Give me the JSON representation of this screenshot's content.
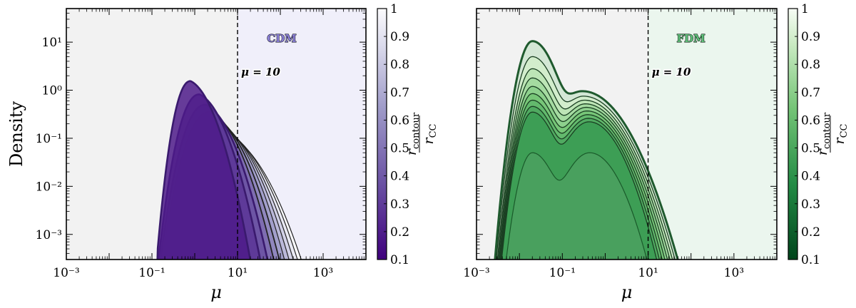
{
  "chart_data": [
    {
      "type": "area",
      "panel_title": "CDM",
      "xlabel": "μ",
      "ylabel": "Density",
      "x_scale": "log",
      "y_scale": "log",
      "xlim": [
        0.001,
        10000
      ],
      "ylim": [
        0.0003,
        50
      ],
      "x_ticks": [
        {
          "value": 0.001,
          "label": "10⁻³"
        },
        {
          "value": 0.1,
          "label": "10⁻¹"
        },
        {
          "value": 10,
          "label": "10¹"
        },
        {
          "value": 1000,
          "label": "10³"
        }
      ],
      "y_ticks": [
        {
          "value": 0.001,
          "label": "10⁻³"
        },
        {
          "value": 0.01,
          "label": "10⁻²"
        },
        {
          "value": 0.1,
          "label": "10⁻¹"
        },
        {
          "value": 1,
          "label": "10⁰"
        },
        {
          "value": 10,
          "label": "10¹"
        }
      ],
      "vline": {
        "x": 10,
        "label": "μ = 10"
      },
      "shade_left_color": "#f2f2f2",
      "shade_right_color": "#f0effa",
      "colormap": "Purples",
      "colorbar": {
        "label": "r_contour / r_CC",
        "ticks": [
          "0.1",
          "0.2",
          "0.3",
          "0.4",
          "0.5",
          "0.6",
          "0.7",
          "0.8",
          "0.9",
          "1"
        ]
      },
      "curves": [
        {
          "ratio": 0.1,
          "peak_x": 0.8,
          "peak_y": 1.55
        },
        {
          "ratio": 0.2,
          "peak_x": 1.3,
          "peak_y": 0.82
        },
        {
          "ratio": 0.3,
          "peak_x": 1.8,
          "peak_y": 0.5
        },
        {
          "ratio": 0.4,
          "peak_x": 2.3,
          "peak_y": 0.36
        },
        {
          "ratio": 0.5,
          "peak_x": 2.8,
          "peak_y": 0.28
        },
        {
          "ratio": 0.6,
          "peak_x": 3.3,
          "peak_y": 0.23
        },
        {
          "ratio": 0.7,
          "peak_x": 3.8,
          "peak_y": 0.19
        },
        {
          "ratio": 0.8,
          "peak_x": 4.3,
          "peak_y": 0.16
        },
        {
          "ratio": 0.9,
          "peak_x": 4.8,
          "peak_y": 0.14
        },
        {
          "ratio": 1.0,
          "peak_x": 5.3,
          "peak_y": 0.12
        }
      ]
    },
    {
      "type": "area",
      "panel_title": "FDM",
      "xlabel": "μ",
      "ylabel": "",
      "x_scale": "log",
      "y_scale": "log",
      "xlim": [
        0.001,
        10000
      ],
      "ylim": [
        0.0003,
        50
      ],
      "x_ticks": [
        {
          "value": 0.001,
          "label": "10⁻³"
        },
        {
          "value": 0.1,
          "label": "10⁻¹"
        },
        {
          "value": 10,
          "label": "10¹"
        },
        {
          "value": 1000,
          "label": "10³"
        }
      ],
      "vline": {
        "x": 10,
        "label": "μ = 10"
      },
      "shade_left_color": "#f2f2f2",
      "shade_right_color": "#ebf6ee",
      "colormap": "Greens",
      "colorbar": {
        "label": "r_contour / r_CC",
        "ticks": [
          "0.1",
          "0.2",
          "0.3",
          "0.4",
          "0.5",
          "0.6",
          "0.7",
          "0.8",
          "0.9",
          "1"
        ]
      },
      "curves": [
        {
          "ratio": 1.0,
          "peak1_y": 10.5,
          "bump_y": 0.95
        },
        {
          "ratio": 0.9,
          "peak1_y": 5.0,
          "bump_y": 0.75
        },
        {
          "ratio": 0.8,
          "peak1_y": 2.8,
          "bump_y": 0.62
        },
        {
          "ratio": 0.7,
          "peak1_y": 1.8,
          "bump_y": 0.52
        },
        {
          "ratio": 0.6,
          "peak1_y": 1.2,
          "bump_y": 0.44
        },
        {
          "ratio": 0.5,
          "peak1_y": 0.85,
          "bump_y": 0.37
        },
        {
          "ratio": 0.4,
          "peak1_y": 0.62,
          "bump_y": 0.31
        },
        {
          "ratio": 0.3,
          "peak1_y": 0.46,
          "bump_y": 0.26
        },
        {
          "ratio": 0.2,
          "peak1_y": 0.35,
          "bump_y": 0.22
        },
        {
          "ratio": 0.1,
          "peak1_y": 0.05,
          "bump_y": 0.05
        }
      ]
    }
  ]
}
